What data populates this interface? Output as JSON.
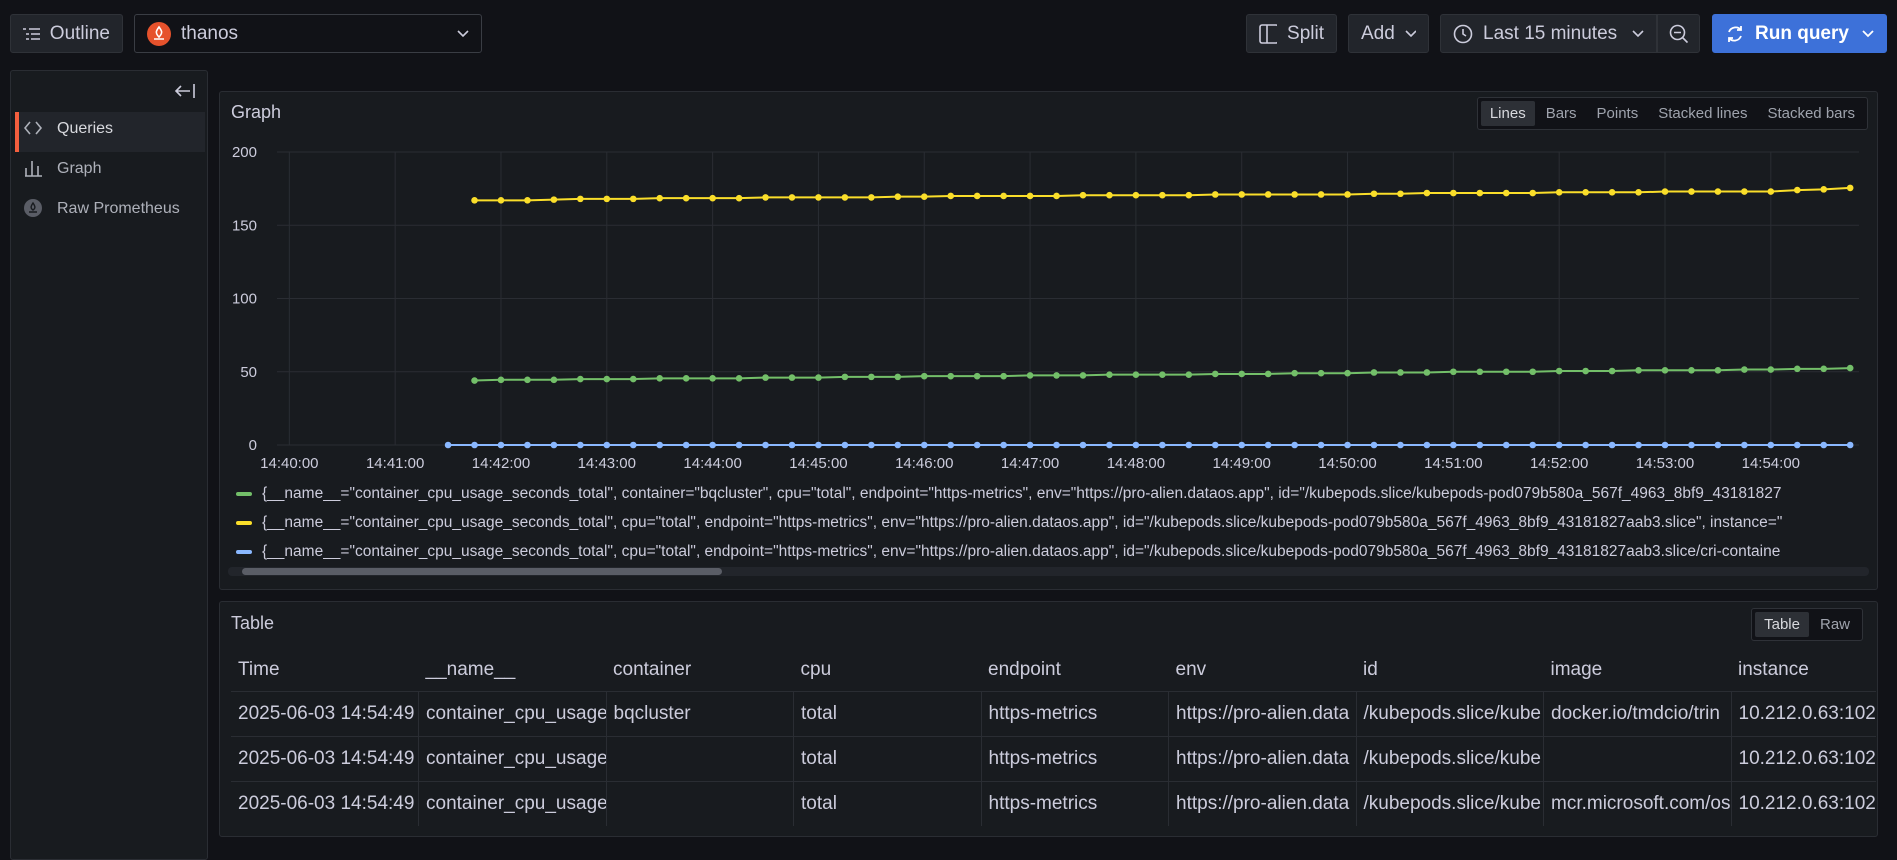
{
  "toolbar": {
    "outline": "Outline",
    "datasource": "thanos",
    "split": "Split",
    "add": "Add",
    "time_range": "Last 15 minutes",
    "run": "Run query"
  },
  "sidebar": {
    "items": [
      "Queries",
      "Graph",
      "Raw Prometheus"
    ]
  },
  "graph_panel": {
    "title": "Graph",
    "modes": [
      "Lines",
      "Bars",
      "Points",
      "Stacked lines",
      "Stacked bars"
    ],
    "active_mode": 0
  },
  "chart_data": {
    "type": "line",
    "grid": true,
    "x": [
      "14:41:30",
      "14:41:45",
      "14:42:00",
      "14:42:15",
      "14:42:30",
      "14:42:45",
      "14:43:00",
      "14:43:15",
      "14:43:30",
      "14:43:45",
      "14:44:00",
      "14:44:15",
      "14:44:30",
      "14:44:45",
      "14:45:00",
      "14:45:15",
      "14:45:30",
      "14:45:45",
      "14:46:00",
      "14:46:15",
      "14:46:30",
      "14:46:45",
      "14:47:00",
      "14:47:15",
      "14:47:30",
      "14:47:45",
      "14:48:00",
      "14:48:15",
      "14:48:30",
      "14:48:45",
      "14:49:00",
      "14:49:15",
      "14:49:30",
      "14:49:45",
      "14:50:00",
      "14:50:15",
      "14:50:30",
      "14:50:45",
      "14:51:00",
      "14:51:15",
      "14:51:30",
      "14:51:45",
      "14:52:00",
      "14:52:15",
      "14:52:30",
      "14:52:45",
      "14:53:00",
      "14:53:15",
      "14:53:30",
      "14:53:45",
      "14:54:00",
      "14:54:15",
      "14:54:30",
      "14:54:45"
    ],
    "xlim": [
      "14:39:53",
      "14:54:50"
    ],
    "xticks": [
      "14:40:00",
      "14:41:00",
      "14:42:00",
      "14:43:00",
      "14:44:00",
      "14:45:00",
      "14:46:00",
      "14:47:00",
      "14:48:00",
      "14:49:00",
      "14:50:00",
      "14:51:00",
      "14:52:00",
      "14:53:00",
      "14:54:00"
    ],
    "ylim": [
      0,
      200
    ],
    "yticks": [
      0,
      50,
      100,
      150,
      200
    ],
    "series": [
      {
        "name": "{__name__=\"container_cpu_usage_seconds_total\", container=\"bqcluster\", cpu=\"total\", endpoint=\"https-metrics\", env=\"https://pro-alien.dataos.app\", id=\"/kubepods.slice/kubepods-pod079b580a_567f_4963_8bf9_43181827",
        "color": "#73bf69",
        "values": [
          null,
          44,
          44.5,
          44.5,
          44.5,
          45,
          45,
          45,
          45.5,
          45.5,
          45.5,
          45.5,
          46,
          46,
          46,
          46.5,
          46.5,
          46.5,
          47,
          47,
          47,
          47,
          47.5,
          47.5,
          47.5,
          48,
          48,
          48,
          48,
          48.5,
          48.5,
          48.5,
          49,
          49,
          49,
          49.5,
          49.5,
          49.5,
          50,
          50,
          50,
          50,
          50.5,
          50.5,
          50.5,
          51,
          51,
          51,
          51,
          51.5,
          51.5,
          52,
          52,
          52.5
        ]
      },
      {
        "name": "{__name__=\"container_cpu_usage_seconds_total\", cpu=\"total\", endpoint=\"https-metrics\", env=\"https://pro-alien.dataos.app\", id=\"/kubepods.slice/kubepods-pod079b580a_567f_4963_8bf9_43181827aab3.slice\", instance=\"",
        "color": "#fade2a",
        "values": [
          null,
          167,
          167,
          167,
          167.5,
          168,
          168,
          168,
          168.5,
          168.5,
          168.5,
          168.5,
          169,
          169,
          169,
          169,
          169,
          169.5,
          169.5,
          170,
          170,
          170,
          170,
          170,
          170.5,
          170.5,
          170.5,
          170.5,
          170.5,
          171,
          171,
          171,
          171,
          171,
          171,
          171.5,
          171.5,
          172,
          172,
          172,
          172,
          172,
          172.5,
          172.5,
          172.5,
          172.5,
          173,
          173,
          173,
          173,
          173,
          174,
          174.5,
          175.5
        ]
      },
      {
        "name": "{__name__=\"container_cpu_usage_seconds_total\", cpu=\"total\", endpoint=\"https-metrics\", env=\"https://pro-alien.dataos.app\", id=\"/kubepods.slice/kubepods-pod079b580a_567f_4963_8bf9_43181827aab3.slice/cri-containe",
        "color": "#8ab8ff",
        "values": [
          0,
          0,
          0,
          0,
          0,
          0,
          0,
          0,
          0,
          0,
          0,
          0,
          0,
          0,
          0,
          0,
          0,
          0,
          0,
          0,
          0,
          0,
          0,
          0,
          0,
          0,
          0,
          0,
          0,
          0,
          0,
          0,
          0,
          0,
          0,
          0,
          0,
          0,
          0,
          0,
          0,
          0,
          0,
          0,
          0,
          0,
          0,
          0,
          0,
          0,
          0,
          0,
          0,
          0
        ]
      }
    ]
  },
  "table_panel": {
    "title": "Table",
    "modes": [
      "Table",
      "Raw"
    ],
    "active_mode": 0,
    "columns": [
      "Time",
      "__name__",
      "container",
      "cpu",
      "endpoint",
      "env",
      "id",
      "image",
      "instance"
    ],
    "rows": [
      [
        "2025-06-03 14:54:49",
        "container_cpu_usage_",
        "bqcluster",
        "total",
        "https-metrics",
        "https://pro-alien.data",
        "/kubepods.slice/kube",
        "docker.io/tmdcio/trin",
        "10.212.0.63:102"
      ],
      [
        "2025-06-03 14:54:49",
        "container_cpu_usage_",
        "",
        "total",
        "https-metrics",
        "https://pro-alien.data",
        "/kubepods.slice/kube",
        "",
        "10.212.0.63:102"
      ],
      [
        "2025-06-03 14:54:49",
        "container_cpu_usage_",
        "",
        "total",
        "https-metrics",
        "https://pro-alien.data",
        "/kubepods.slice/kube",
        "mcr.microsoft.com/os",
        "10.212.0.63:102"
      ]
    ]
  }
}
